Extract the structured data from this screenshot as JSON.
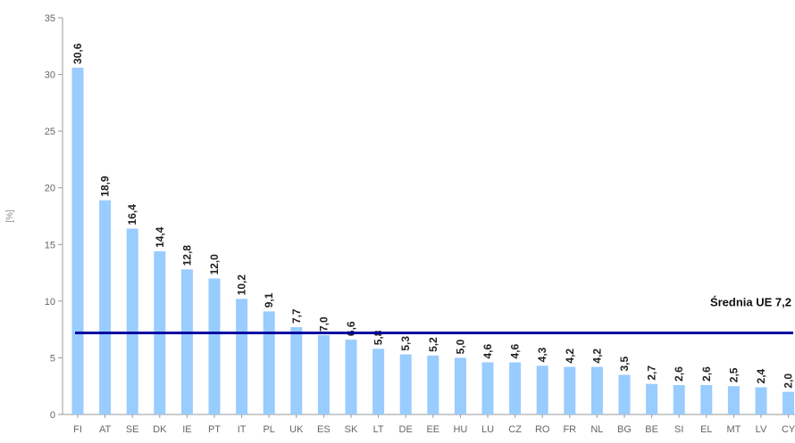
{
  "chart_data": {
    "type": "bar",
    "ylabel": "[%]",
    "ylim": [
      0,
      35
    ],
    "yticks": [
      0,
      5,
      10,
      15,
      20,
      25,
      30,
      35
    ],
    "categories": [
      "FI",
      "AT",
      "SE",
      "DK",
      "IE",
      "PT",
      "IT",
      "PL",
      "UK",
      "ES",
      "SK",
      "LT",
      "DE",
      "EE",
      "HU",
      "LU",
      "CZ",
      "RO",
      "FR",
      "NL",
      "BG",
      "BE",
      "SI",
      "EL",
      "MT",
      "LV",
      "CY"
    ],
    "values": [
      30.6,
      18.9,
      16.4,
      14.4,
      12.8,
      12.0,
      10.2,
      9.1,
      7.7,
      7.0,
      6.6,
      5.8,
      5.3,
      5.2,
      5.0,
      4.6,
      4.6,
      4.3,
      4.2,
      4.2,
      3.5,
      2.7,
      2.6,
      2.6,
      2.5,
      2.4,
      2.0
    ],
    "value_labels": [
      "30,6",
      "18,9",
      "16,4",
      "14,4",
      "12,8",
      "12,0",
      "10,2",
      "9,1",
      "7,7",
      "7,0",
      "6,6",
      "5,8",
      "5,3",
      "5,2",
      "5,0",
      "4,6",
      "4,6",
      "4,3",
      "4,2",
      "4,2",
      "3,5",
      "2,7",
      "2,6",
      "2,6",
      "2,5",
      "2,4",
      "2,0"
    ],
    "category_labels": [
      "FI",
      "AT",
      "SE",
      "DK",
      "IE",
      "PT",
      "IT",
      "PL",
      "UK",
      "ES",
      "SK",
      "LT",
      "DE",
      "EE",
      "HU",
      "LU",
      "CZ",
      "RO",
      "FR",
      "NL",
      "BG",
      "BE",
      "SI",
      "EL",
      "MT",
      "LV",
      "CY"
    ],
    "reference_line": {
      "value": 7.2,
      "label": "Średnia UE 7,2",
      "color": "#0000a0"
    },
    "bar_color": "#99ccff",
    "grid": false,
    "legend": "none"
  }
}
